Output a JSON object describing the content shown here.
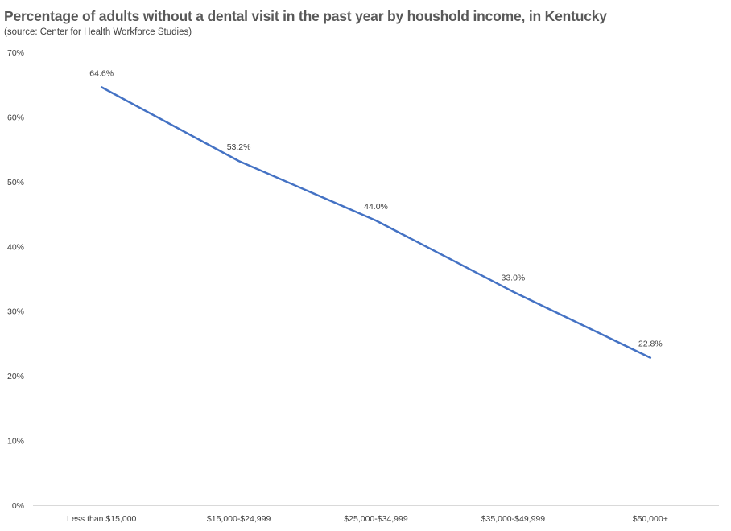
{
  "chart_data": {
    "type": "line",
    "title": "Percentage of adults without a dental visit in the past year by houshold income, in Kentucky",
    "subtitle": "(source: Center for Health Workforce Studies)",
    "categories": [
      "Less than $15,000",
      "$15,000-$24,999",
      "$25,000-$34,999",
      "$35,000-$49,999",
      "$50,000+"
    ],
    "series": [
      {
        "values": [
          64.6,
          53.2,
          44.0,
          33.0,
          22.8
        ],
        "data_labels": [
          "64.6%",
          "53.2%",
          "44.0%",
          "33.0%",
          "22.8%"
        ]
      }
    ],
    "ylim": [
      0,
      70
    ],
    "y_ticks": [
      0,
      10,
      20,
      30,
      40,
      50,
      60,
      70
    ],
    "y_tick_labels": [
      "0%",
      "10%",
      "20%",
      "30%",
      "40%",
      "50%",
      "60%",
      "70%"
    ],
    "grid": false,
    "legend": "none",
    "colors": {
      "line": "#4472C4",
      "axis": "#D9D9D9",
      "text": "#404040",
      "title": "#595959"
    }
  }
}
